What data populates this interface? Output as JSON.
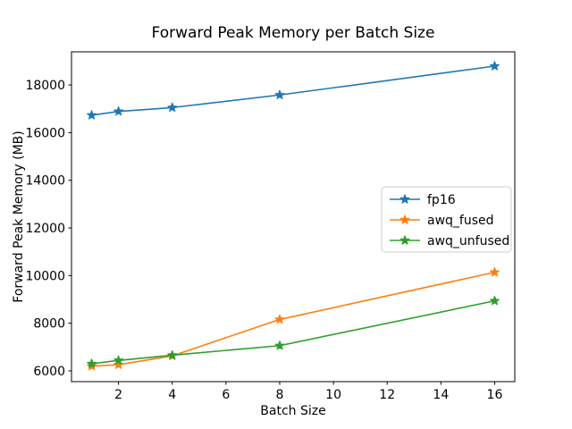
{
  "chart_data": {
    "type": "line",
    "title": "Forward Peak Memory per Batch Size",
    "xlabel": "Batch Size",
    "ylabel": "Forward Peak Memory (MB)",
    "x": [
      1,
      2,
      4,
      8,
      16
    ],
    "series": [
      {
        "name": "fp16",
        "color": "#1f77b4",
        "values": [
          16730,
          16890,
          17050,
          17580,
          18790
        ]
      },
      {
        "name": "awq_fused",
        "color": "#ff7f0e",
        "values": [
          6200,
          6260,
          6630,
          8160,
          10140
        ]
      },
      {
        "name": "awq_unfused",
        "color": "#2ca02c",
        "values": [
          6300,
          6440,
          6660,
          7060,
          8940
        ]
      }
    ],
    "marker": "star",
    "xticks": [
      2,
      4,
      6,
      8,
      10,
      12,
      14,
      16
    ],
    "yticks": [
      6000,
      8000,
      10000,
      12000,
      14000,
      16000,
      18000
    ],
    "xlim": [
      0.25,
      16.75
    ],
    "ylim": [
      5550,
      19390
    ],
    "legend_position": "center right",
    "grid": false,
    "background_color": "#ffffff",
    "spine_color": "#000000"
  }
}
